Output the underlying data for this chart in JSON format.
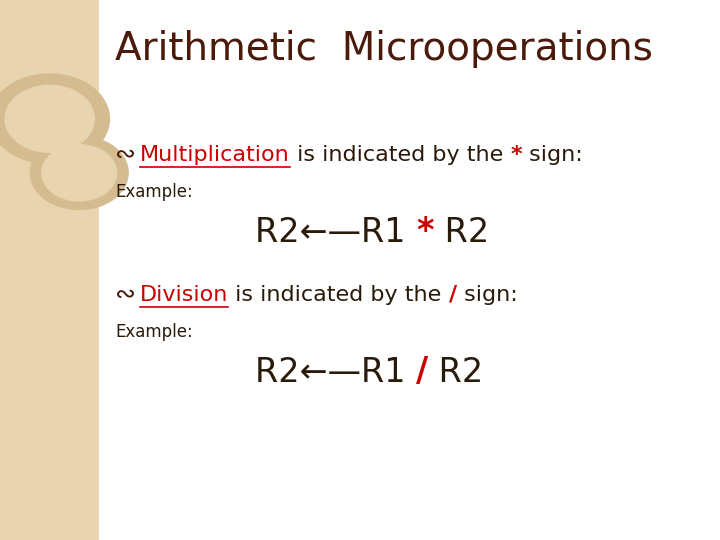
{
  "title": "Arithmetic  Microoperations",
  "title_color": "#4a1a0a",
  "title_fontsize": 28,
  "bg_color": "#ffffff",
  "left_panel_color": "#e8d5b0",
  "left_panel_dark": "#d4bc90",
  "bullet_color": "#4a1a0a",
  "underline_color": "#cc0000",
  "red_color": "#cc0000",
  "dark_color": "#2a1a0a",
  "line1_label": "Multiplication",
  "line1_rest": " is indicated by the ",
  "line1_op": "*",
  "line1_end": " sign:",
  "example1_label": "Example:",
  "line2_label": "Division",
  "line2_rest": " is indicated by the ",
  "line2_op": "/",
  "line2_end": " sign:",
  "example2_label": "Example:",
  "font_size_body": 16,
  "font_size_example": 24,
  "font_size_label": 12,
  "font_size_title": 28,
  "font_size_bullet": 18
}
